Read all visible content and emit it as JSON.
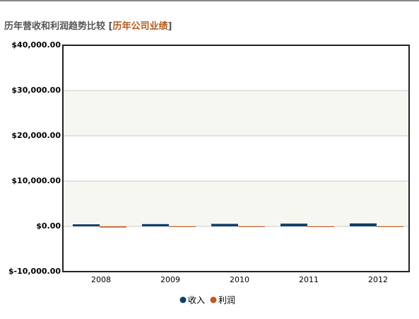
{
  "chart_data": {
    "type": "bar",
    "title": "历年营收和利润趋势比较",
    "title_link": "历年公司业绩",
    "title_brackets": [
      "[",
      "]"
    ],
    "categories": [
      "2008",
      "2009",
      "2010",
      "2011",
      "2012"
    ],
    "series": [
      {
        "name": "收入",
        "color": "#0e3e6c",
        "values": [
          450,
          500,
          550,
          600,
          650
        ]
      },
      {
        "name": "利润",
        "color": "#c4571a",
        "values": [
          -250,
          -30,
          -20,
          -10,
          -40
        ]
      }
    ],
    "ylim": [
      -10000,
      40000
    ],
    "yticks": [
      {
        "value": -10000,
        "label": "$-10,000.00"
      },
      {
        "value": 0,
        "label": "$0.00"
      },
      {
        "value": 10000,
        "label": "$10,000.00"
      },
      {
        "value": 20000,
        "label": "$20,000.00"
      },
      {
        "value": 30000,
        "label": "$30,000.00"
      },
      {
        "value": 40000,
        "label": "$40,000.00"
      }
    ],
    "grid": true,
    "legend": "bottom"
  }
}
